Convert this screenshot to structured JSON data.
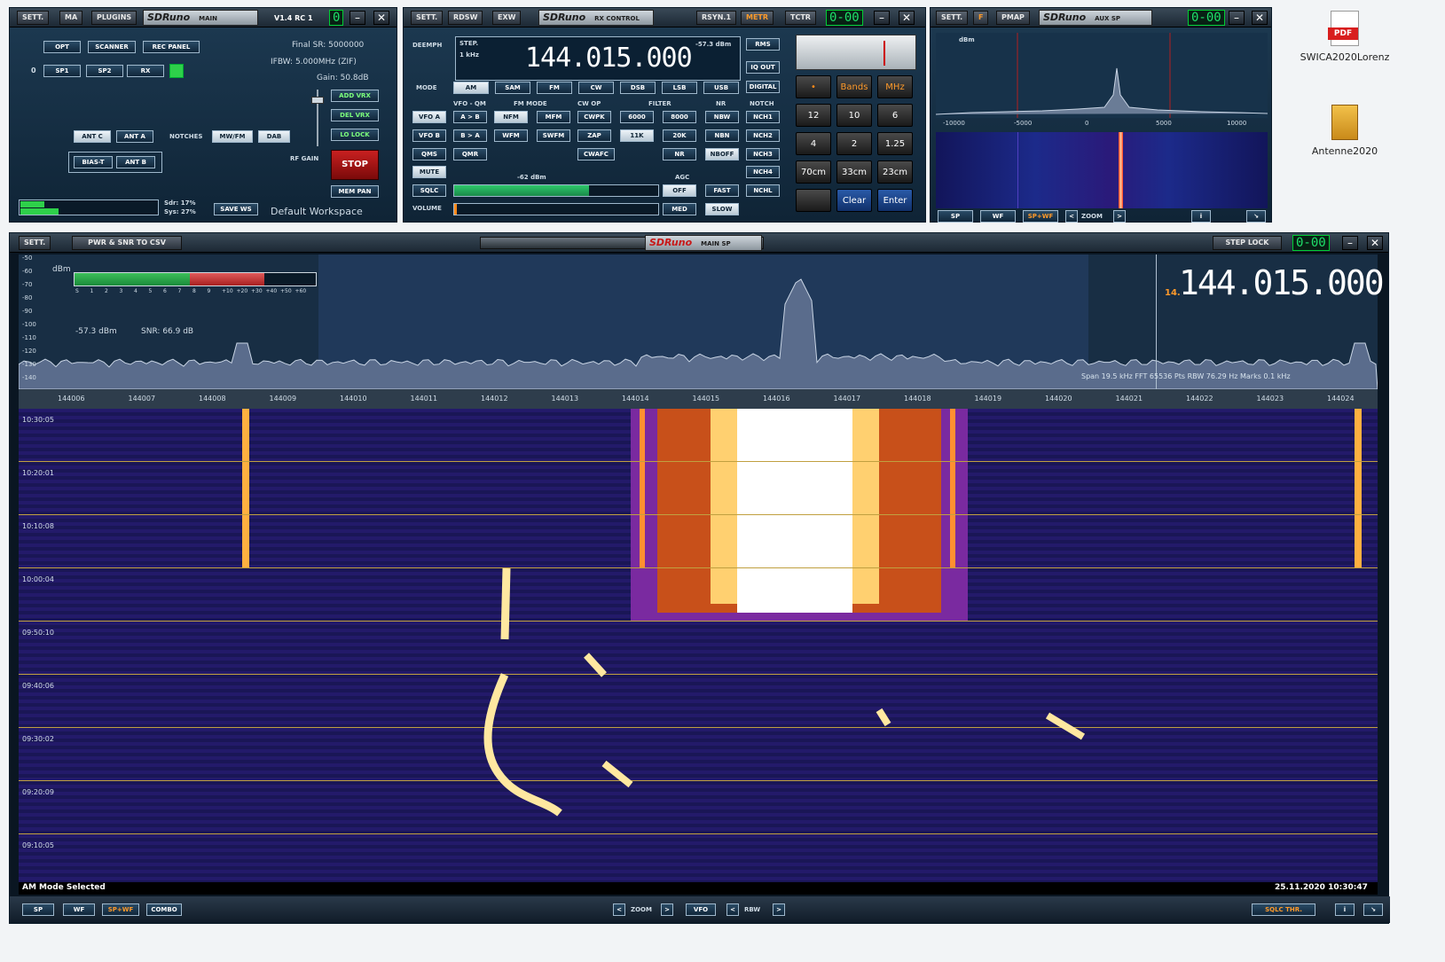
{
  "main_panel": {
    "buttons": {
      "sett": "SETT.",
      "ma": "MA",
      "plugins": "PLUGINS"
    },
    "logo": "SDRuno",
    "logo_sub": "MAIN",
    "version": "V1.4 RC 1",
    "seg": "0",
    "opt": "OPT",
    "scanner": "SCANNER",
    "rec_panel": "REC PANEL",
    "sp1": "SP1",
    "sp2": "SP2",
    "rx": "RX",
    "zero": "0",
    "final_sr": "Final SR: 5000000",
    "ifbw": "IFBW: 5.000MHz (ZIF)",
    "gain": "Gain: 50.8dB",
    "add_vrx": "ADD VRX",
    "del_vrx": "DEL VRX",
    "lo_lock": "LO LOCK",
    "stop": "STOP",
    "mem_pan": "MEM PAN",
    "ant_c": "ANT C",
    "ant_a": "ANT A",
    "notches": "NOTCHES",
    "mwfm": "MW/FM",
    "dab": "DAB",
    "bias_t": "BIAS-T",
    "ant_b": "ANT B",
    "rf_gain": "RF GAIN",
    "sdr": "Sdr: 17%",
    "sys": "Sys: 27%",
    "save_ws": "SAVE WS",
    "workspace": "Default Workspace"
  },
  "rx_control": {
    "buttons": {
      "sett": "SETT.",
      "rdsw": "RDSW",
      "exw": "EXW",
      "rsyn": "RSYN.1",
      "metr": "METR",
      "tctr": "TCTR"
    },
    "logo": "SDRuno",
    "logo_sub": "RX CONTROL",
    "seg": "0-00",
    "deemph": "DEEMPH",
    "step": "STEP.",
    "step_value": "1 kHz",
    "frequency": "144.015.000",
    "level": "-57.3 dBm",
    "rms": "RMS",
    "iq_out": "IQ OUT",
    "digital": "DIGITAL",
    "mode_label": "MODE",
    "modes": [
      "AM",
      "SAM",
      "FM",
      "CW",
      "DSB",
      "LSB",
      "USB"
    ],
    "headers": {
      "vfo_qm": "VFO - QM",
      "fm_mode": "FM MODE",
      "cw_op": "CW OP",
      "filter": "FILTER",
      "nr": "NR",
      "notch": "NOTCH"
    },
    "row1": [
      "VFO A",
      "A > B",
      "NFM",
      "MFM",
      "CWPK",
      "6000",
      "8000",
      "NBW",
      "NCH1"
    ],
    "row2": [
      "VFO B",
      "B > A",
      "WFM",
      "SWFM",
      "ZAP",
      "11K",
      "20K",
      "NBN",
      "NCH2"
    ],
    "row3": [
      "QMS",
      "QMR",
      "CWAFC",
      "NR",
      "NBOFF",
      "NCH3"
    ],
    "mute": "MUTE",
    "nch4": "NCH4",
    "sq_level": "-62 dBm",
    "sqlc": "SQLC",
    "agc": "AGC",
    "off": "OFF",
    "fast": "FAST",
    "nchl": "NCHL",
    "volume": "VOLUME",
    "med": "MED",
    "slow": "SLOW"
  },
  "keypad": {
    "keys": [
      "•",
      "Bands",
      "MHz",
      "12",
      "10",
      "6",
      "4",
      "2",
      "1.25",
      "70cm",
      "33cm",
      "23cm",
      "",
      "Clear",
      "Enter"
    ]
  },
  "aux_sp": {
    "buttons": {
      "sett": "SETT.",
      "f": "F",
      "pmap": "PMAP"
    },
    "logo": "SDRuno",
    "logo_sub": "AUX SP",
    "seg": "0-00",
    "unit": "dBm",
    "ticks": [
      "-10000",
      "-5000",
      "0",
      "5000",
      "10000"
    ],
    "bottom": {
      "sp": "SP",
      "wf": "WF",
      "spwf": "SP+WF",
      "zoom": "ZOOM",
      "lt": "<",
      "gt": ">"
    }
  },
  "main_sp": {
    "buttons": {
      "sett": "SETT.",
      "pwr": "PWR & SNR TO CSV",
      "step_lock": "STEP LOCK"
    },
    "logo": "SDRuno",
    "logo_sub": "MAIN SP",
    "seg": "0-00",
    "unit": "dBm",
    "scale": [
      "-50",
      "-60",
      "-70",
      "-80",
      "-90",
      "-100",
      "-110",
      "-120",
      "-130",
      "-140"
    ],
    "smeter": [
      "S",
      "1",
      "2",
      "3",
      "4",
      "5",
      "6",
      "7",
      "8",
      "9",
      "+10",
      "+20",
      "+30",
      "+40",
      "+50",
      "+60"
    ],
    "level": "-57.3 dBm",
    "snr": "SNR: 66.9 dB",
    "frequency": "144.015.000",
    "freq_prefix": "14.",
    "info": "Span 19.5 kHz   FFT 65536 Pts   RBW 76.29 Hz   Marks 0.1 kHz",
    "freq_ticks": [
      "144006",
      "144007",
      "144008",
      "144009",
      "144010",
      "144011",
      "144012",
      "144013",
      "144014",
      "144015",
      "144016",
      "144017",
      "144018",
      "144019",
      "144020",
      "144021",
      "144022",
      "144023",
      "144024"
    ],
    "times": [
      "10:30:05",
      "10:20:01",
      "10:10:08",
      "10:00:04",
      "09:50:10",
      "09:40:06",
      "09:30:02",
      "09:20:09",
      "09:10:05"
    ],
    "status": "AM Mode Selected",
    "datetime": "25.11.2020 10:30:47",
    "bottom": {
      "sp": "SP",
      "wf": "WF",
      "spwf": "SP+WF",
      "combo": "COMBO",
      "zoom": "ZOOM",
      "vfo": "VFO",
      "rbw": "RBW",
      "sqlc_thr": "SQLC THR.",
      "lt": "<",
      "gt": ">"
    }
  },
  "desktop": {
    "icons": [
      {
        "label": "SWICA2020Lorenz",
        "glyph": "PDF"
      },
      {
        "label": "Antenne2020",
        "glyph": ""
      }
    ]
  },
  "colors": {
    "accent_green": "#1fe06a",
    "stop_red": "#b01818",
    "spwf_orange": "#ff9a2a"
  }
}
